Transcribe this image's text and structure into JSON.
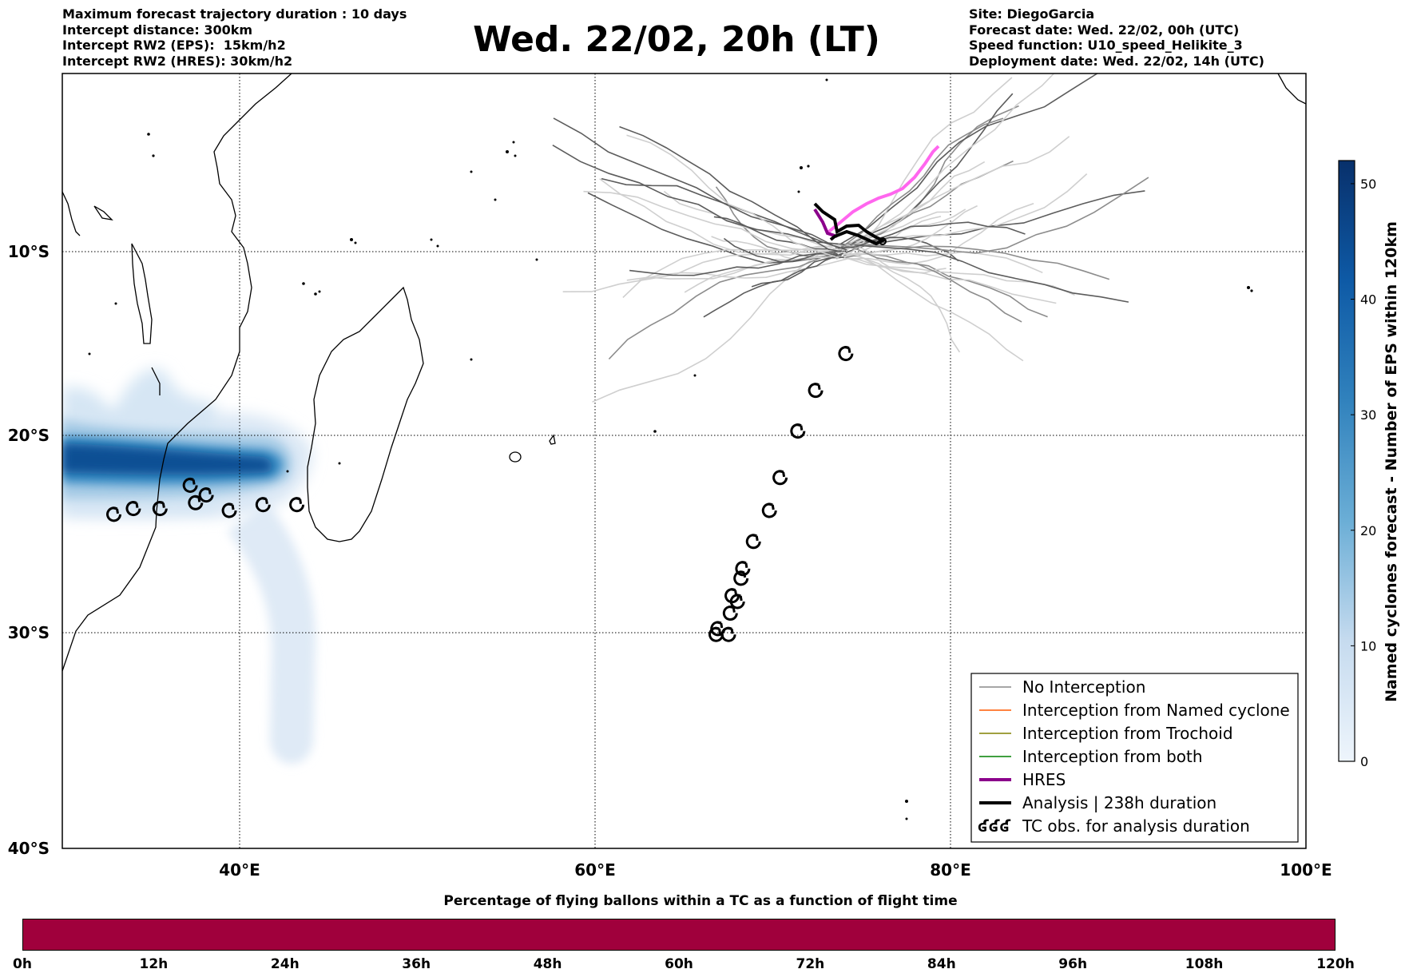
{
  "header_left": {
    "line1": "Maximum forecast trajectory duration : 10 days",
    "line2": "Intercept distance: 300km",
    "line3": "Intercept RW2 (EPS):  15km/h2",
    "line4": "Intercept RW2 (HRES): 30km/h2"
  },
  "header_right": {
    "line1": "Site: DiegoGarcia",
    "line2": "Forecast date: Wed. 22/02, 00h (UTC)",
    "line3": "Speed function: U10_speed_Helikite_3",
    "line4": "Deployment date: Wed. 22/02, 14h (UTC)"
  },
  "title": "Wed. 22/02, 20h (LT)",
  "map": {
    "lon_range": [
      30,
      100
    ],
    "lat_range": [
      -40,
      0
    ],
    "lat_labels": [
      "10°S",
      "20°S",
      "30°S",
      "40°S"
    ],
    "lon_labels": [
      "40°E",
      "60°E",
      "80°E",
      "100°E"
    ],
    "gridlines": "dotted",
    "site": {
      "lon": 73.9,
      "lat": -9.2
    },
    "tc_observations": [
      {
        "lon": 74.1,
        "lat": -14.5
      },
      {
        "lon": 72.4,
        "lat": -16.4
      },
      {
        "lon": 71.4,
        "lat": -18.5
      },
      {
        "lon": 70.4,
        "lat": -20.9
      },
      {
        "lon": 69.8,
        "lat": -22.6
      },
      {
        "lon": 68.9,
        "lat": -24.2
      },
      {
        "lon": 68.3,
        "lat": -25.6
      },
      {
        "lon": 68.2,
        "lat": -26.1
      },
      {
        "lon": 67.7,
        "lat": -27.0
      },
      {
        "lon": 68.0,
        "lat": -27.3
      },
      {
        "lon": 67.6,
        "lat": -27.9
      },
      {
        "lon": 66.9,
        "lat": -28.7
      },
      {
        "lon": 66.8,
        "lat": -29.0
      },
      {
        "lon": 67.5,
        "lat": -29.0
      },
      {
        "lon": 43.2,
        "lat": -22.3
      },
      {
        "lon": 41.3,
        "lat": -22.3
      },
      {
        "lon": 39.4,
        "lat": -22.6
      },
      {
        "lon": 38.1,
        "lat": -21.8
      },
      {
        "lon": 37.5,
        "lat": -22.2
      },
      {
        "lon": 37.2,
        "lat": -21.3
      },
      {
        "lon": 35.5,
        "lat": -22.5
      },
      {
        "lon": 34.0,
        "lat": -22.5
      },
      {
        "lon": 32.9,
        "lat": -22.8
      }
    ]
  },
  "colorbar": {
    "title": "Named cyclones forecast - Number of EPS within 120km",
    "ticks": [
      "0",
      "10",
      "20",
      "30",
      "40",
      "50"
    ],
    "min": 0,
    "max": 52,
    "color_low": "#e6f0fa",
    "color_high": "#08306b"
  },
  "legend": {
    "items": [
      {
        "label": "No Interception",
        "color": "#888888"
      },
      {
        "label": "Interception from Named cyclone",
        "color": "#ff5a00"
      },
      {
        "label": "Interception from Trochoid",
        "color": "#808000"
      },
      {
        "label": "Interception from both",
        "color": "#008000"
      },
      {
        "label": "HRES",
        "color": "#8b008b"
      },
      {
        "label": "Analysis | 238h duration",
        "color": "#000000"
      },
      {
        "label": "TC obs. for analysis duration",
        "color": "#000000",
        "symbol": "ʛʛʛ"
      }
    ]
  },
  "bottom_bar": {
    "title": "Percentage of flying ballons within a TC as a function of flight time",
    "ticks": [
      "0h",
      "12h",
      "24h",
      "36h",
      "48h",
      "60h",
      "72h",
      "84h",
      "96h",
      "108h",
      "120h"
    ],
    "color": "#a0003c"
  }
}
